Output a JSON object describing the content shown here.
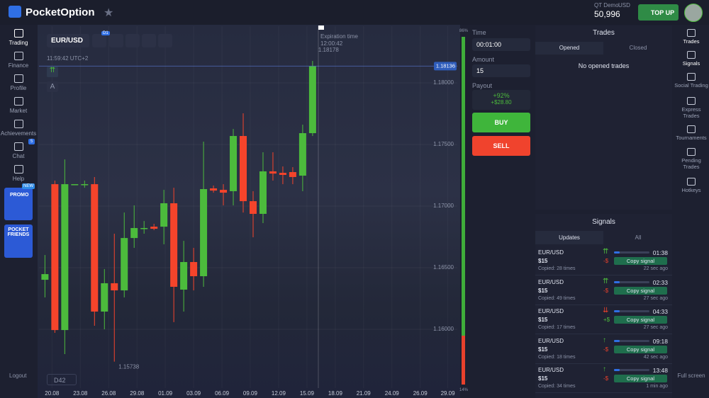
{
  "header": {
    "brand": "PocketOption",
    "account_type": "QT Demo",
    "currency": "USD",
    "balance": "50,996",
    "top_up": "TOP UP"
  },
  "left_nav": {
    "items": [
      "Trading",
      "Finance",
      "Profile",
      "Market",
      "Achievements",
      "Chat",
      "Help"
    ],
    "chat_badge": "5",
    "promo": "PROMO",
    "promo_badge": "NEW",
    "friends": "POCKET FRIENDS",
    "logout": "Logout"
  },
  "toolbar": {
    "pair": "EUR/USD",
    "timeframe": "D1",
    "clock": "11:59:42 UTC+2",
    "drawing_label": "A",
    "expiration_label": "Expiration time",
    "expiration_time": "12:00:42",
    "zoom": "D42"
  },
  "chart_data": {
    "type": "candlestick",
    "up_color": "#4cbb3c",
    "down_color": "#f5442b",
    "grid": true,
    "x": [
      0,
      1,
      2,
      3,
      4,
      5,
      6,
      7,
      8,
      9,
      10,
      11,
      12,
      13,
      14,
      15,
      16,
      17,
      18,
      19,
      20,
      21,
      22,
      23,
      24,
      25,
      26,
      27
    ],
    "open": [
      1.16402,
      1.17178,
      1.15994,
      1.17178,
      1.17178,
      1.17178,
      1.16144,
      1.16374,
      1.16316,
      1.16741,
      1.16822,
      1.16833,
      1.16833,
      1.17023,
      1.16322,
      1.16546,
      1.16431,
      1.17144,
      1.17132,
      1.17121,
      1.17569,
      1.1704,
      1.16937,
      1.17282,
      1.1727,
      1.17276,
      1.17247,
      1.17592
    ],
    "high": [
      1.16603,
      1.17207,
      1.17379,
      1.17167,
      1.17207,
      1.17236,
      1.16489,
      1.16776,
      1.16948,
      1.17006,
      1.16879,
      1.16856,
      1.17132,
      1.17149,
      1.16718,
      1.16661,
      1.17523,
      1.17167,
      1.17178,
      1.17626,
      1.17753,
      1.17121,
      1.17437,
      1.17437,
      1.17322,
      1.17316,
      1.17661,
      1.18178
    ],
    "low": [
      1.16259,
      1.15971,
      1.15799,
      1.17167,
      1.17149,
      1.16029,
      1.16,
      1.15738,
      1.16259,
      1.16661,
      1.16776,
      1.16805,
      1.1669,
      1.16058,
      1.16144,
      1.16316,
      1.16345,
      1.17109,
      1.17006,
      1.17006,
      1.16948,
      1.16747,
      1.16862,
      1.17207,
      1.17178,
      1.17178,
      1.17121,
      1.17569
    ],
    "close": [
      1.16448,
      1.15994,
      1.17178,
      1.17178,
      1.17178,
      1.16144,
      1.16374,
      1.16316,
      1.16741,
      1.16822,
      1.16822,
      1.16816,
      1.17023,
      1.16345,
      1.16546,
      1.16431,
      1.17138,
      1.17126,
      1.17109,
      1.17569,
      1.1704,
      1.16937,
      1.17282,
      1.17264,
      1.17253,
      1.17236,
      1.17592,
      1.18136
    ],
    "xlim": [
      -0.6,
      41.6
    ],
    "xticks": [
      {
        "value": 0.71,
        "label": "20.08"
      },
      {
        "value": 3.57,
        "label": "23.08"
      },
      {
        "value": 6.43,
        "label": "26.08"
      },
      {
        "value": 9.29,
        "label": "29.08"
      },
      {
        "value": 12.14,
        "label": "01.09"
      },
      {
        "value": 15,
        "label": "03.09"
      },
      {
        "value": 17.86,
        "label": "06.09"
      },
      {
        "value": 20.71,
        "label": "09.09"
      },
      {
        "value": 23.57,
        "label": "12.09"
      },
      {
        "value": 26.43,
        "label": "15.09"
      },
      {
        "value": 29.29,
        "label": "18.09"
      },
      {
        "value": 32.14,
        "label": "21.09"
      },
      {
        "value": 35,
        "label": "24.09"
      },
      {
        "value": 37.86,
        "label": "26.09"
      },
      {
        "value": 40.64,
        "label": "29.09"
      }
    ],
    "ylim": [
      1.15523,
      1.1846
    ],
    "yticks": [
      {
        "value": 1.18,
        "label": "1.18000"
      },
      {
        "value": 1.175,
        "label": "1.17500"
      },
      {
        "value": 1.17,
        "label": "1.17000"
      },
      {
        "value": 1.165,
        "label": "1.16500"
      },
      {
        "value": 1.16,
        "label": "1.16000"
      }
    ]
  },
  "sentiment": {
    "values": [
      86,
      14
    ],
    "value_labels": [
      "86%",
      "14%"
    ],
    "colors": [
      "#3fae3a",
      "#e8412c"
    ]
  },
  "trade_form": {
    "time_label": "Time",
    "time": "00:01:00",
    "amount_label": "Amount",
    "amount": "15",
    "payout_label": "Payout",
    "payout_percent": "+92%",
    "payout_amount": "+$28.80",
    "buy": "BUY",
    "sell": "SELL"
  },
  "trades": {
    "title": "Trades",
    "tabs": [
      "Opened",
      "Closed"
    ],
    "empty": "No opened trades"
  },
  "signals": {
    "title": "Signals",
    "tabs": [
      "Updates",
      "All"
    ],
    "rows": [
      {
        "pair": "EUR/USD",
        "arrow": "⇈",
        "arrow_color": "#4cbb3c",
        "amount": "$15",
        "result": "-$",
        "result_color": "#e8412c",
        "copied": "Copied: 28 times",
        "time": "01:38",
        "ago": "22 sec ago",
        "button": "Copy signal"
      },
      {
        "pair": "EUR/USD",
        "arrow": "⇈",
        "arrow_color": "#4cbb3c",
        "amount": "$15",
        "result": "-$",
        "result_color": "#e8412c",
        "copied": "Copied: 49 times",
        "time": "02:33",
        "ago": "27 sec ago",
        "button": "Copy signal"
      },
      {
        "pair": "EUR/USD",
        "arrow": "⇊",
        "arrow_color": "#e8412c",
        "amount": "$15",
        "result": "+$",
        "result_color": "#4cbb3c",
        "copied": "Copied: 17 times",
        "time": "04:33",
        "ago": "27 sec ago",
        "button": "Copy signal"
      },
      {
        "pair": "EUR/USD",
        "arrow": "↑",
        "arrow_color": "#4cbb3c",
        "amount": "$15",
        "result": "-$",
        "result_color": "#e8412c",
        "copied": "Copied: 18 times",
        "time": "09:18",
        "ago": "42 sec ago",
        "button": "Copy signal"
      },
      {
        "pair": "EUR/USD",
        "arrow": "↑",
        "arrow_color": "#4cbb3c",
        "amount": "$15",
        "result": "-$",
        "result_color": "#e8412c",
        "copied": "Copied: 34 times",
        "time": "13:48",
        "ago": "1 min ago",
        "button": "Copy signal"
      }
    ]
  },
  "right_nav": {
    "items": [
      "Trades",
      "Signals",
      "Social Trading",
      "Express Trades",
      "Tournaments",
      "Pending Trades",
      "Hotkeys"
    ],
    "fullscreen": "Full screen"
  }
}
